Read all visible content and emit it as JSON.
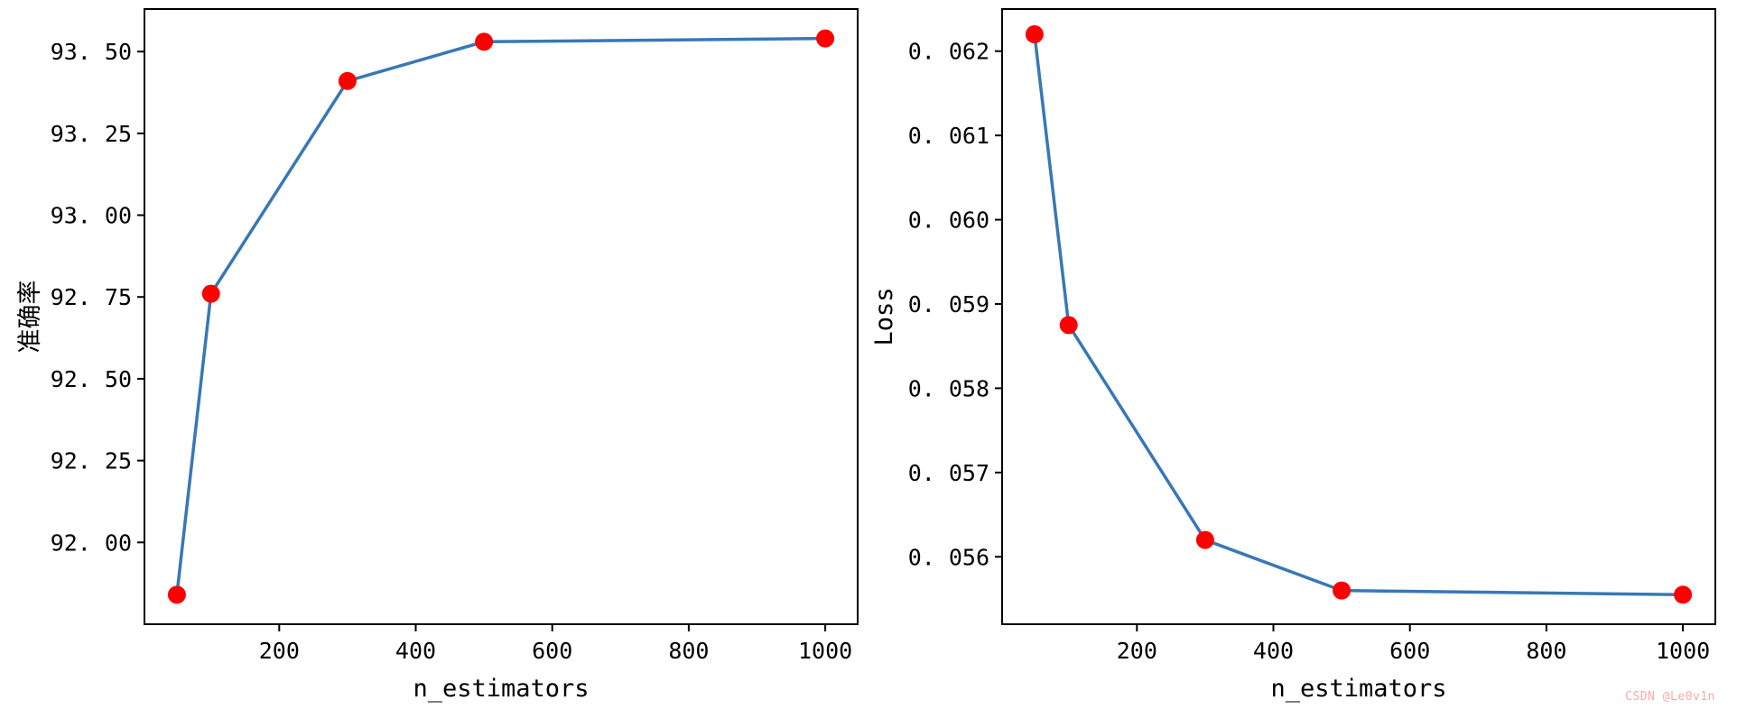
{
  "watermark": {
    "text": "CSDN @Le0v1n",
    "color": "#fca8a8"
  },
  "style": {
    "spine_color": "#000000",
    "background": "#ffffff"
  },
  "chart_data": [
    {
      "type": "line",
      "title": "",
      "xlabel": "n_estimators",
      "ylabel": "准确率",
      "x": [
        50,
        100,
        300,
        500,
        1000
      ],
      "y": [
        91.84,
        92.76,
        93.41,
        93.53,
        93.54
      ],
      "xlim": [
        2.5,
        1047.5
      ],
      "ylim": [
        91.75,
        93.63
      ],
      "xticks": [
        200,
        400,
        600,
        800,
        1000
      ],
      "xtick_labels": [
        "200",
        "400",
        "600",
        "800",
        "1000"
      ],
      "yticks": [
        92.0,
        92.25,
        92.5,
        92.75,
        93.0,
        93.25,
        93.5
      ],
      "ytick_labels": [
        "92. 00",
        "92. 25",
        "92. 50",
        "92. 75",
        "93. 00",
        "93. 25",
        "93. 50"
      ],
      "line_color": "#3878b4",
      "marker_color": "#ff0000",
      "marker": "circle",
      "grid": false,
      "legend": null
    },
    {
      "type": "line",
      "title": "",
      "xlabel": "n_estimators",
      "ylabel": "Loss",
      "x": [
        50,
        100,
        300,
        500,
        1000
      ],
      "y": [
        0.0622,
        0.05875,
        0.0562,
        0.0556,
        0.05555
      ],
      "xlim": [
        2.5,
        1047.5
      ],
      "ylim": [
        0.0552,
        0.0625
      ],
      "xticks": [
        200,
        400,
        600,
        800,
        1000
      ],
      "xtick_labels": [
        "200",
        "400",
        "600",
        "800",
        "1000"
      ],
      "yticks": [
        0.056,
        0.057,
        0.058,
        0.059,
        0.06,
        0.061,
        0.062
      ],
      "ytick_labels": [
        "0. 056",
        "0. 057",
        "0. 058",
        "0. 059",
        "0. 060",
        "0. 061",
        "0. 062"
      ],
      "line_color": "#3878b4",
      "marker_color": "#ff0000",
      "marker": "circle",
      "grid": false,
      "legend": null
    }
  ]
}
